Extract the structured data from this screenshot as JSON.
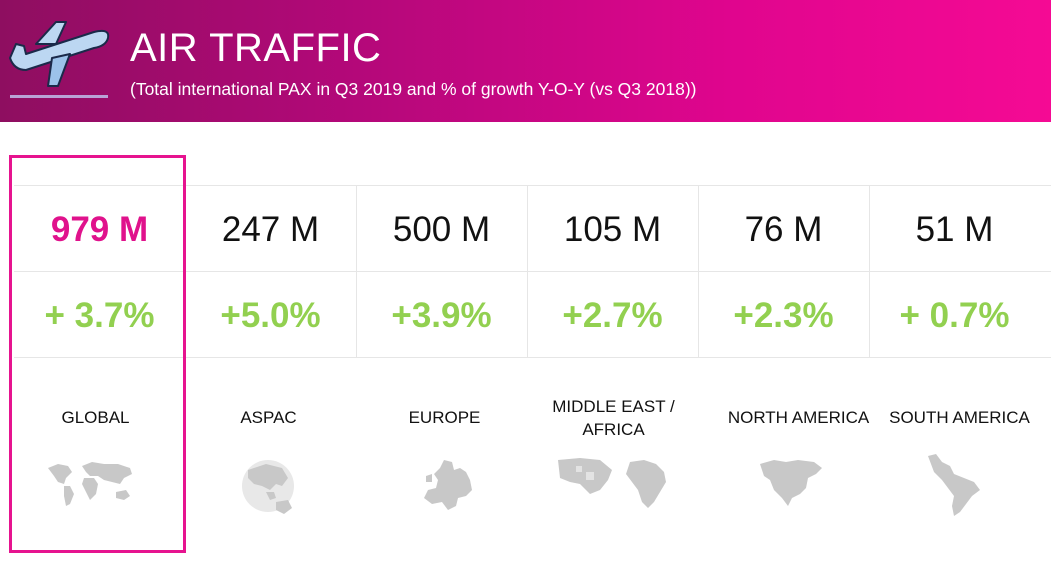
{
  "header": {
    "title": "AIR TRAFFIC",
    "subtitle": "(Total international PAX in Q3 2019 and % of growth Y-O-Y (vs Q3 2018))",
    "background_start": "#8e0e60",
    "background_end": "#f50a94",
    "icon": "airplane-icon"
  },
  "colors": {
    "highlight": "#e6138f",
    "growth": "#92d050",
    "map": "#c8c8c8"
  },
  "regions": [
    {
      "name": "GLOBAL",
      "pax": "979 M",
      "growth": "+ 3.7%",
      "icon": "world-map-icon"
    },
    {
      "name": "ASPAC",
      "pax": "247 M",
      "growth": "+5.0%",
      "icon": "aspac-map-icon"
    },
    {
      "name": "EUROPE",
      "pax": "500 M",
      "growth": "+3.9%",
      "icon": "europe-map-icon"
    },
    {
      "name": "MIDDLE EAST / AFRICA",
      "name_line1": "MIDDLE EAST /",
      "name_line2": "AFRICA",
      "pax": "105 M",
      "growth": "+2.7%",
      "icon": "middle-east-africa-map-icon"
    },
    {
      "name": "NORTH AMERICA",
      "pax": "76 M",
      "growth": "+2.3%",
      "icon": "north-america-map-icon"
    },
    {
      "name": "SOUTH AMERICA",
      "pax": "51 M",
      "growth": "+ 0.7%",
      "icon": "south-america-map-icon"
    }
  ]
}
